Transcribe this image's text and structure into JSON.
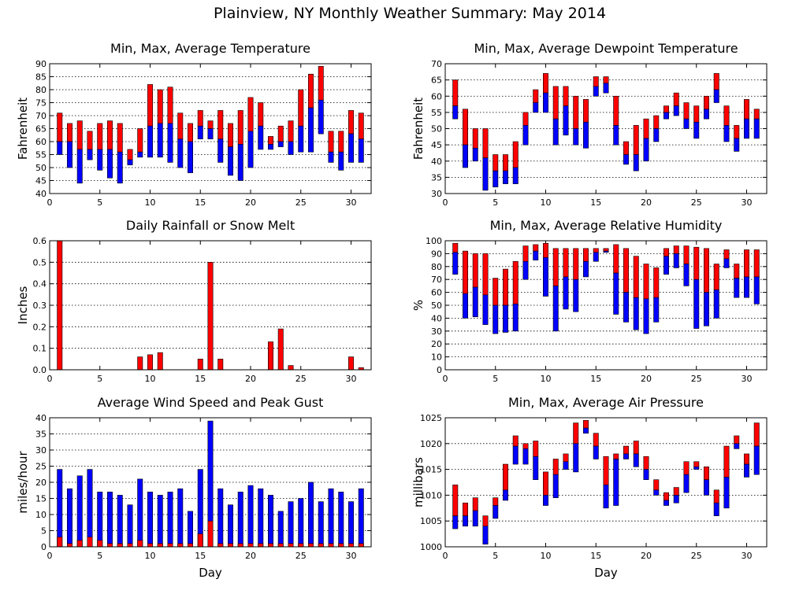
{
  "page_title": "Plainview, NY Monthly Weather Summary: May 2014",
  "colors": {
    "max_bar": "#ff0000",
    "min_bar": "#0000ff",
    "outline": "#000000"
  },
  "chart_data": [
    {
      "id": "temp",
      "type": "bar",
      "title": "Min, Max, Average Temperature",
      "xlabel": "",
      "ylabel": "Fahrenheit",
      "xlim": [
        0,
        32
      ],
      "ylim": [
        40,
        90
      ],
      "yticks": [
        40,
        45,
        50,
        55,
        60,
        65,
        70,
        75,
        80,
        85,
        90
      ],
      "xticks": [
        0,
        5,
        10,
        15,
        20,
        25,
        30
      ],
      "grid": true,
      "day": [
        1,
        2,
        3,
        4,
        5,
        6,
        7,
        8,
        9,
        10,
        11,
        12,
        13,
        14,
        15,
        16,
        17,
        18,
        19,
        20,
        21,
        22,
        23,
        24,
        25,
        26,
        27,
        28,
        29,
        30,
        31
      ],
      "max": [
        71,
        67,
        68,
        64,
        67,
        68,
        67,
        57,
        65,
        82,
        80,
        81,
        71,
        67,
        72,
        68,
        72,
        67,
        72,
        77,
        75,
        62,
        66,
        68,
        80,
        86,
        89,
        64,
        64,
        72,
        71
      ],
      "average": [
        60,
        60,
        57,
        57,
        57,
        57,
        56,
        53,
        56,
        66,
        67,
        67,
        61,
        60,
        66,
        65,
        61,
        58,
        59,
        64,
        66,
        59,
        60,
        60,
        66,
        73,
        76,
        56,
        56,
        63,
        61
      ],
      "min": [
        55,
        50,
        44,
        53,
        49,
        46,
        44,
        51,
        54,
        54,
        54,
        52,
        50,
        48,
        61,
        61,
        52,
        47,
        45,
        50,
        57,
        57,
        58,
        55,
        56,
        56,
        63,
        52,
        49,
        52,
        52
      ]
    },
    {
      "id": "dewpoint",
      "type": "bar",
      "title": "Min, Max, Average Dewpoint Temperature",
      "xlabel": "",
      "ylabel": "Fahrenheit",
      "xlim": [
        0,
        32
      ],
      "ylim": [
        30,
        70
      ],
      "yticks": [
        30,
        35,
        40,
        45,
        50,
        55,
        60,
        65,
        70
      ],
      "xticks": [
        0,
        5,
        10,
        15,
        20,
        25,
        30
      ],
      "grid": true,
      "day": [
        1,
        2,
        3,
        4,
        5,
        6,
        7,
        8,
        9,
        10,
        11,
        12,
        13,
        14,
        15,
        16,
        17,
        18,
        19,
        20,
        21,
        22,
        23,
        24,
        25,
        26,
        27,
        28,
        29,
        30,
        31
      ],
      "max": [
        65,
        56,
        50,
        50,
        42,
        42,
        46,
        55,
        62,
        67,
        63,
        63,
        60,
        59,
        66,
        66,
        60,
        46,
        51,
        53,
        54,
        57,
        61,
        58,
        57,
        60,
        67,
        57,
        51,
        59,
        56
      ],
      "average": [
        57,
        45,
        44,
        41,
        37,
        37,
        38,
        51,
        58,
        61,
        53,
        57,
        50,
        52,
        63,
        64,
        51,
        42,
        42,
        47,
        50,
        55,
        57,
        53,
        52,
        56,
        62,
        51,
        47,
        53,
        53
      ],
      "min": [
        53,
        38,
        40,
        31,
        32,
        33,
        33,
        45,
        55,
        55,
        45,
        48,
        45,
        44,
        60,
        61,
        45,
        39,
        37,
        40,
        46,
        53,
        54,
        50,
        47,
        53,
        58,
        46,
        43,
        47,
        47
      ]
    },
    {
      "id": "rain",
      "type": "bar",
      "title": "Daily Rainfall or Snow Melt",
      "xlabel": "",
      "ylabel": "Inches",
      "xlim": [
        0,
        32
      ],
      "ylim": [
        0,
        0.6
      ],
      "yticks": [
        0,
        0.1,
        0.2,
        0.3,
        0.4,
        0.5,
        0.6
      ],
      "ytick_labels": [
        "0.0",
        "0.1",
        "0.2",
        "0.3",
        "0.4",
        "0.5",
        "0.6"
      ],
      "xticks": [
        0,
        5,
        10,
        15,
        20,
        25,
        30
      ],
      "grid": true,
      "day": [
        1,
        2,
        3,
        4,
        5,
        6,
        7,
        8,
        9,
        10,
        11,
        12,
        13,
        14,
        15,
        16,
        17,
        18,
        19,
        20,
        21,
        22,
        23,
        24,
        25,
        26,
        27,
        28,
        29,
        30,
        31
      ],
      "values": [
        0.6,
        0,
        0,
        0,
        0,
        0,
        0,
        0,
        0.06,
        0.07,
        0.08,
        0,
        0,
        0,
        0.05,
        0.5,
        0.05,
        0,
        0,
        0,
        0,
        0.13,
        0.19,
        0.02,
        0,
        0,
        0,
        0,
        0,
        0.06,
        0.01
      ]
    },
    {
      "id": "humidity",
      "type": "bar",
      "title": "Min, Max, Average Relative Humidity",
      "xlabel": "",
      "ylabel": "%",
      "xlim": [
        0,
        32
      ],
      "ylim": [
        0,
        100
      ],
      "yticks": [
        0,
        10,
        20,
        30,
        40,
        50,
        60,
        70,
        80,
        90,
        100
      ],
      "xticks": [
        0,
        5,
        10,
        15,
        20,
        25,
        30
      ],
      "grid": true,
      "day": [
        1,
        2,
        3,
        4,
        5,
        6,
        7,
        8,
        9,
        10,
        11,
        12,
        13,
        14,
        15,
        16,
        17,
        18,
        19,
        20,
        21,
        22,
        23,
        24,
        25,
        26,
        27,
        28,
        29,
        30,
        31
      ],
      "max": [
        98,
        92,
        90,
        90,
        71,
        78,
        84,
        96,
        97,
        98,
        94,
        94,
        94,
        94,
        94,
        94,
        97,
        94,
        88,
        82,
        79,
        94,
        96,
        96,
        95,
        94,
        82,
        93,
        82,
        93,
        93
      ],
      "average": [
        91,
        59,
        64,
        58,
        50,
        50,
        51,
        84,
        92,
        87,
        65,
        72,
        70,
        84,
        91,
        92,
        75,
        60,
        56,
        55,
        56,
        88,
        90,
        82,
        70,
        60,
        62,
        86,
        71,
        72,
        72
      ],
      "min": [
        74,
        40,
        41,
        35,
        28,
        29,
        30,
        70,
        85,
        57,
        30,
        47,
        45,
        72,
        84,
        91,
        43,
        37,
        31,
        28,
        37,
        74,
        79,
        65,
        32,
        34,
        40,
        79,
        56,
        56,
        51
      ]
    },
    {
      "id": "wind",
      "type": "bar",
      "title": "Average Wind Speed and Peak Gust",
      "xlabel": "Day",
      "ylabel": "miles/hour",
      "xlim": [
        0,
        32
      ],
      "ylim": [
        0,
        40
      ],
      "yticks": [
        0,
        5,
        10,
        15,
        20,
        25,
        30,
        35,
        40
      ],
      "xticks": [
        0,
        5,
        10,
        15,
        20,
        25,
        30
      ],
      "grid": true,
      "day": [
        1,
        2,
        3,
        4,
        5,
        6,
        7,
        8,
        9,
        10,
        11,
        12,
        13,
        14,
        15,
        16,
        17,
        18,
        19,
        20,
        21,
        22,
        23,
        24,
        25,
        26,
        27,
        28,
        29,
        30,
        31
      ],
      "peak_gust": [
        24,
        18,
        22,
        24,
        17,
        17,
        16,
        13,
        21,
        17,
        16,
        17,
        18,
        11,
        24,
        39,
        18,
        13,
        17,
        19,
        18,
        16,
        11,
        14,
        15,
        20,
        14,
        18,
        17,
        14,
        18
      ],
      "average_speed": [
        3,
        1,
        2,
        3,
        2,
        1,
        1,
        1,
        2,
        1,
        1,
        1,
        1,
        1,
        4,
        8,
        1,
        1,
        1,
        1,
        1,
        1,
        1,
        1,
        1,
        1,
        1,
        1,
        1,
        1,
        1
      ]
    },
    {
      "id": "pressure",
      "type": "bar",
      "title": "Min, Max, Average Air Pressure",
      "xlabel": "Day",
      "ylabel": "millibars",
      "xlim": [
        0,
        32
      ],
      "ylim": [
        1000,
        1025
      ],
      "yticks": [
        1000,
        1005,
        1010,
        1015,
        1020,
        1025
      ],
      "xticks": [
        0,
        5,
        10,
        15,
        20,
        25,
        30
      ],
      "grid": true,
      "day": [
        1,
        2,
        3,
        4,
        5,
        6,
        7,
        8,
        9,
        10,
        11,
        12,
        13,
        14,
        15,
        16,
        17,
        18,
        19,
        20,
        21,
        22,
        23,
        24,
        25,
        26,
        27,
        28,
        29,
        30,
        31
      ],
      "max": [
        1012,
        1008.5,
        1009.5,
        1006,
        1009.5,
        1016,
        1021.5,
        1020,
        1020.5,
        1014.5,
        1017,
        1018,
        1024,
        1024.5,
        1022,
        1017.5,
        1018,
        1019.5,
        1020.5,
        1017.5,
        1013,
        1010.5,
        1011.5,
        1016.5,
        1016.5,
        1015.5,
        1011,
        1019.5,
        1021.5,
        1018,
        1024
      ],
      "average": [
        1006,
        1006,
        1007,
        1004,
        1008,
        1011,
        1019.5,
        1019,
        1017.5,
        1010,
        1014,
        1016.5,
        1020,
        1023,
        1019.5,
        1012,
        1017,
        1018,
        1018,
        1015,
        1011,
        1009,
        1010,
        1014,
        1015.5,
        1013,
        1008.5,
        1013.5,
        1020,
        1016,
        1019.5
      ],
      "min": [
        1003.5,
        1004,
        1004,
        1000.5,
        1005.5,
        1009,
        1016,
        1016,
        1013,
        1008,
        1009.5,
        1015,
        1014.5,
        1022,
        1017,
        1007.5,
        1008,
        1017,
        1015.5,
        1013,
        1010,
        1008,
        1008.5,
        1010.5,
        1015,
        1010,
        1006,
        1007.5,
        1019,
        1013.5,
        1014
      ]
    }
  ]
}
